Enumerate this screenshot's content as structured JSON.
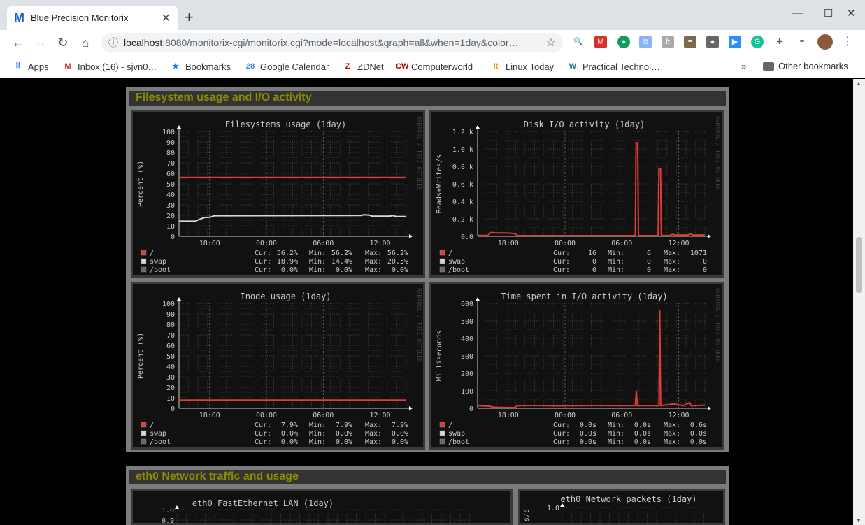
{
  "browser": {
    "tab_title": "Blue Precision Monitorix",
    "tab_favicon": "M",
    "url_host": "localhost",
    "url_rest": ":8080/monitorix-cgi/monitorix.cgi?mode=localhost&graph=all&when=1day&color…",
    "bookmarks": [
      {
        "icon": "apps-icon",
        "label": "Apps",
        "color": "#4285f4"
      },
      {
        "icon": "gmail-icon",
        "label": "Inbox (16) - sjvn0…",
        "color": "#d93025"
      },
      {
        "icon": "star-icon",
        "label": "Bookmarks",
        "color": "#1a73e8"
      },
      {
        "icon": "calendar-icon",
        "label": "Google Calendar",
        "color": "#4285f4"
      },
      {
        "icon": "zdnet-icon",
        "label": "ZDNet",
        "color": "#d00"
      },
      {
        "icon": "computerworld-icon",
        "label": "Computerworld",
        "color": "#a00"
      },
      {
        "icon": "linux-today-icon",
        "label": "Linux Today",
        "color": "#e8a000"
      },
      {
        "icon": "wordpress-icon",
        "label": "Practical Technol…",
        "color": "#21759b"
      }
    ],
    "other_bookmarks": "Other bookmarks"
  },
  "sections": [
    {
      "title": "Filesystem usage and I/O activity"
    },
    {
      "title": "eth0 Network traffic and usage"
    }
  ],
  "watermark": "RRDTOOL / TOBI OETIKER",
  "time_ticks": [
    "18:00",
    "00:00",
    "06:00",
    "12:00"
  ],
  "graphs": [
    {
      "title": "Filesystems usage  (1day)",
      "ylabel": "Percent (%)",
      "ymax": 100,
      "yticks": [
        [
          0,
          "0"
        ],
        [
          10,
          "10"
        ],
        [
          20,
          "20"
        ],
        [
          30,
          "30"
        ],
        [
          40,
          "40"
        ],
        [
          50,
          "50"
        ],
        [
          60,
          "60"
        ],
        [
          70,
          "70"
        ],
        [
          80,
          "80"
        ],
        [
          90,
          "90"
        ],
        [
          100,
          "100"
        ]
      ],
      "series": [
        {
          "name": "/",
          "color": "#e03a3a",
          "points": [
            [
              "14:46",
              56.2
            ],
            [
              "14:45",
              56.2
            ]
          ],
          "cur": "56.2%",
          "min": "56.2%",
          "max": "56.2%"
        },
        {
          "name": "swap",
          "color": "#d8d8d8",
          "points": [
            [
              "14:46",
              14.4
            ],
            [
              "16:30",
              14.4
            ],
            [
              "17:00",
              16.5
            ],
            [
              "17:30",
              18
            ],
            [
              "18:00",
              18.2
            ],
            [
              "18:30",
              19.6
            ],
            [
              "10:00",
              19.8
            ],
            [
              "10:15",
              20.5
            ],
            [
              "10:50",
              20.3
            ],
            [
              "11:10",
              19.2
            ],
            [
              "13:00",
              19.2
            ],
            [
              "13:20",
              19.8
            ],
            [
              "13:40",
              18.9
            ],
            [
              "14:45",
              18.9
            ]
          ],
          "cur": "18.9%",
          "min": "14.4%",
          "max": "20.5%"
        },
        {
          "name": "/boot",
          "color": "#666666",
          "points": [],
          "cur": "0.0%",
          "min": "0.0%",
          "max": "0.0%"
        }
      ]
    },
    {
      "title": "Disk I/O activity  (1day)",
      "ylabel": "Reads+Writes/s",
      "ymax": 1200,
      "yticks": [
        [
          0,
          "0.0"
        ],
        [
          200,
          "0.2 k"
        ],
        [
          400,
          "0.4 k"
        ],
        [
          600,
          "0.6 k"
        ],
        [
          800,
          "0.8 k"
        ],
        [
          1000,
          "1.0 k"
        ],
        [
          1200,
          "1.2 k"
        ]
      ],
      "series": [
        {
          "name": "/",
          "color": "#e03a3a",
          "points": [
            [
              "14:46",
              10
            ],
            [
              "15:50",
              10
            ],
            [
              "16:10",
              45
            ],
            [
              "16:40",
              38
            ],
            [
              "18:00",
              38
            ],
            [
              "18:40",
              30
            ],
            [
              "19:00",
              8
            ],
            [
              "07:25",
              8
            ],
            [
              "07:30",
              1071
            ],
            [
              "07:40",
              1071
            ],
            [
              "07:45",
              8
            ],
            [
              "09:50",
              8
            ],
            [
              "09:55",
              770
            ],
            [
              "10:05",
              770
            ],
            [
              "10:10",
              8
            ],
            [
              "11:00",
              10
            ],
            [
              "11:20",
              22
            ],
            [
              "11:40",
              15
            ],
            [
              "13:00",
              15
            ],
            [
              "13:15",
              28
            ],
            [
              "13:30",
              14
            ],
            [
              "14:45",
              16
            ]
          ],
          "cur": "16",
          "min": "6",
          "max": "1071"
        },
        {
          "name": "swap",
          "color": "#d8d8d8",
          "points": [],
          "cur": "0",
          "min": "0",
          "max": "0"
        },
        {
          "name": "/boot",
          "color": "#666666",
          "points": [],
          "cur": "0",
          "min": "0",
          "max": "0"
        }
      ]
    },
    {
      "title": "Inode usage  (1day)",
      "ylabel": "Percent (%)",
      "ymax": 100,
      "yticks": [
        [
          0,
          "0"
        ],
        [
          10,
          "10"
        ],
        [
          20,
          "20"
        ],
        [
          30,
          "30"
        ],
        [
          40,
          "40"
        ],
        [
          50,
          "50"
        ],
        [
          60,
          "60"
        ],
        [
          70,
          "70"
        ],
        [
          80,
          "80"
        ],
        [
          90,
          "90"
        ],
        [
          100,
          "100"
        ]
      ],
      "series": [
        {
          "name": "/",
          "color": "#e03a3a",
          "points": [
            [
              "14:46",
              7.9
            ],
            [
              "14:45",
              7.9
            ]
          ],
          "cur": "7.9%",
          "min": "7.9%",
          "max": "7.9%"
        },
        {
          "name": "swap",
          "color": "#d8d8d8",
          "points": [],
          "cur": "0.0%",
          "min": "0.0%",
          "max": "0.0%"
        },
        {
          "name": "/boot",
          "color": "#666666",
          "points": [],
          "cur": "0.0%",
          "min": "0.0%",
          "max": "0.0%"
        }
      ]
    },
    {
      "title": "Time spent in I/O activity  (1day)",
      "ylabel": "Milliseconds",
      "ymax": 600,
      "yticks": [
        [
          0,
          "0"
        ],
        [
          100,
          "100"
        ],
        [
          200,
          "200"
        ],
        [
          300,
          "300"
        ],
        [
          400,
          "400"
        ],
        [
          500,
          "500"
        ],
        [
          600,
          "600"
        ]
      ],
      "series": [
        {
          "name": "/",
          "color": "#e03a3a",
          "points": [
            [
              "14:46",
              15
            ],
            [
              "16:00",
              12
            ],
            [
              "16:30",
              6
            ],
            [
              "18:00",
              4
            ],
            [
              "18:40",
              5
            ],
            [
              "19:00",
              15
            ],
            [
              "21:00",
              16
            ],
            [
              "23:00",
              14
            ],
            [
              "03:00",
              16
            ],
            [
              "07:25",
              15
            ],
            [
              "07:32",
              100
            ],
            [
              "07:38",
              15
            ],
            [
              "09:55",
              15
            ],
            [
              "10:00",
              565
            ],
            [
              "10:06",
              15
            ],
            [
              "11:30",
              25
            ],
            [
              "12:30",
              15
            ],
            [
              "13:10",
              32
            ],
            [
              "13:20",
              14
            ],
            [
              "14:45",
              18
            ]
          ],
          "cur": "0.0s",
          "min": "0.0s",
          "max": "0.6s"
        },
        {
          "name": "swap",
          "color": "#d8d8d8",
          "points": [],
          "cur": "0.0s",
          "min": "0.0s",
          "max": "0.0s"
        },
        {
          "name": "/boot",
          "color": "#666666",
          "points": [],
          "cur": "0.0s",
          "min": "0.0s",
          "max": "0.0s"
        }
      ]
    }
  ],
  "net_graphs": [
    {
      "title": "eth0 FastEthernet LAN  (1day)",
      "yticks": [
        "1.0",
        "0.9"
      ]
    },
    {
      "title": "eth0 Network packets  (1day)",
      "yticks": [
        "1.0"
      ],
      "ylabel": "s/s"
    }
  ],
  "legend_labels": {
    "cur": "Cur:",
    "min": "Min:",
    "max": "Max:"
  }
}
